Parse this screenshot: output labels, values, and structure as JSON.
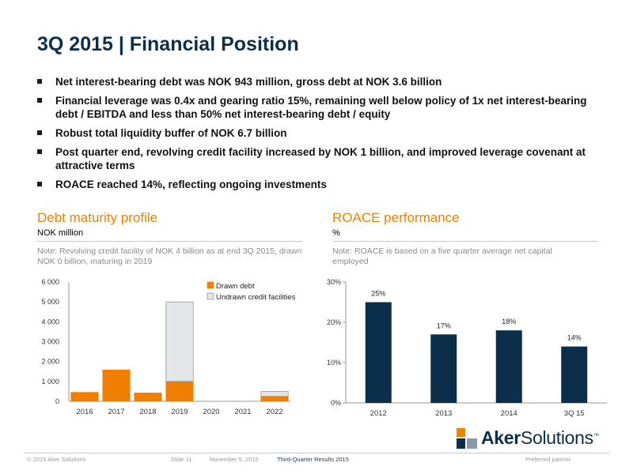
{
  "slide": {
    "title": "3Q 2015 | Financial Position"
  },
  "bullets": [
    "Net interest-bearing debt was NOK 943 million, gross debt at NOK 3.6 billion",
    "Financial leverage was 0.4x and gearing ratio 15%, remaining well below policy of 1x net interest-bearing debt / EBITDA and less than 50% net interest-bearing debt / equity",
    "Robust total liquidity buffer of NOK 6.7 billion",
    "Post quarter end, revolving credit facility increased by NOK 1 billion, and improved leverage covenant at attractive terms",
    "ROACE reached 14%, reflecting ongoing investments"
  ],
  "debt_panel": {
    "title": "Debt maturity profile",
    "subtitle": "NOK million",
    "note": "Note: Revolving credit facility of NOK 4 billion as at end 3Q 2015, drawn NOK 0 billion, maturing in 2019"
  },
  "roace_panel": {
    "title": "ROACE performance",
    "subtitle": "%",
    "note": "Note: ROACE is based on a five quarter average net capital employed"
  },
  "chart_data": [
    {
      "type": "bar",
      "stacked": true,
      "categories": [
        "2016",
        "2017",
        "2018",
        "2019",
        "2020",
        "2021",
        "2022"
      ],
      "series": [
        {
          "name": "Drawn debt",
          "color": "#f07f00",
          "values": [
            450,
            1580,
            420,
            1000,
            0,
            0,
            250
          ]
        },
        {
          "name": "Undrawn credit facilities",
          "color": "#e2e6e9",
          "values": [
            0,
            0,
            0,
            4000,
            0,
            0,
            250
          ]
        }
      ],
      "ylim": [
        0,
        6000
      ],
      "yticks": [
        "0",
        "1 000",
        "2 000",
        "3 000",
        "4 000",
        "5 000",
        "6 000"
      ],
      "ytick_values": [
        0,
        1000,
        2000,
        3000,
        4000,
        5000,
        6000
      ],
      "legend": "top-right",
      "grid": false
    },
    {
      "type": "bar",
      "categories": [
        "2012",
        "2013",
        "2014",
        "3Q 15"
      ],
      "values": [
        25,
        17,
        18,
        14
      ],
      "data_labels": [
        "25%",
        "17%",
        "18%",
        "14%"
      ],
      "color": "#0b2f4a",
      "ylim": [
        0,
        30
      ],
      "yticks": [
        "0%",
        "10%",
        "20%",
        "30%"
      ],
      "ytick_values": [
        0,
        10,
        20,
        30
      ],
      "grid": false
    }
  ],
  "logo": {
    "text_bold": "Aker",
    "text_regular": "Solutions",
    "trademark": "™",
    "colors": [
      "#0b2f4a",
      "#f07f00",
      "#8a9aa8"
    ]
  },
  "footer": {
    "copyright": "© 2015 Aker Solutions",
    "slide": "Slide 11",
    "date": "November 5, 2015",
    "presentation": "Third-Quarter Results 2015",
    "tagline": "Preferred partner"
  }
}
